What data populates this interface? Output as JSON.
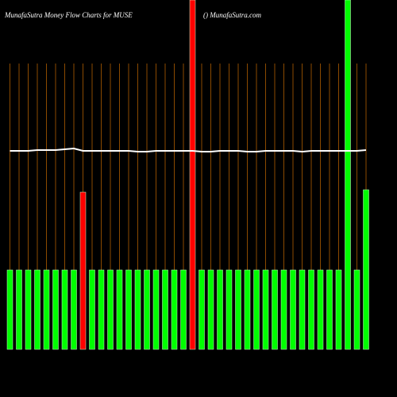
{
  "chart_data": {
    "type": "bar",
    "title": "MunafaSutra  Money Flow  Charts for MUSE",
    "subtitle": "() MunafaSutra.com",
    "ylim": [
      0,
      440
    ],
    "values": [
      100,
      100,
      100,
      100,
      100,
      100,
      100,
      100,
      198,
      100,
      100,
      100,
      100,
      100,
      100,
      100,
      100,
      100,
      100,
      100,
      440,
      100,
      100,
      100,
      100,
      100,
      100,
      100,
      100,
      100,
      100,
      100,
      100,
      100,
      100,
      100,
      100,
      440,
      100,
      201
    ],
    "colors": [
      "#00ff00",
      "#00ff00",
      "#00ff00",
      "#00ff00",
      "#00ff00",
      "#00ff00",
      "#00ff00",
      "#00ff00",
      "#ff0000",
      "#00ff00",
      "#00ff00",
      "#00ff00",
      "#00ff00",
      "#00ff00",
      "#00ff00",
      "#00ff00",
      "#00ff00",
      "#00ff00",
      "#00ff00",
      "#00ff00",
      "#ff0000",
      "#00ff00",
      "#00ff00",
      "#00ff00",
      "#00ff00",
      "#00ff00",
      "#00ff00",
      "#00ff00",
      "#00ff00",
      "#00ff00",
      "#00ff00",
      "#00ff00",
      "#00ff00",
      "#00ff00",
      "#00ff00",
      "#00ff00",
      "#00ff00",
      "#00ff00",
      "#00ff00",
      "#00ff00"
    ],
    "line": {
      "color": "#ffffff",
      "values": [
        250,
        250,
        250,
        251,
        251,
        251,
        252,
        253,
        250,
        250,
        250,
        250,
        250,
        250,
        249,
        249,
        250,
        250,
        250,
        250,
        250,
        249,
        249,
        250,
        250,
        250,
        249,
        249,
        250,
        250,
        250,
        250,
        249,
        250,
        250,
        250,
        250,
        250,
        250,
        251
      ]
    },
    "grid_color": "#8b4a00"
  }
}
